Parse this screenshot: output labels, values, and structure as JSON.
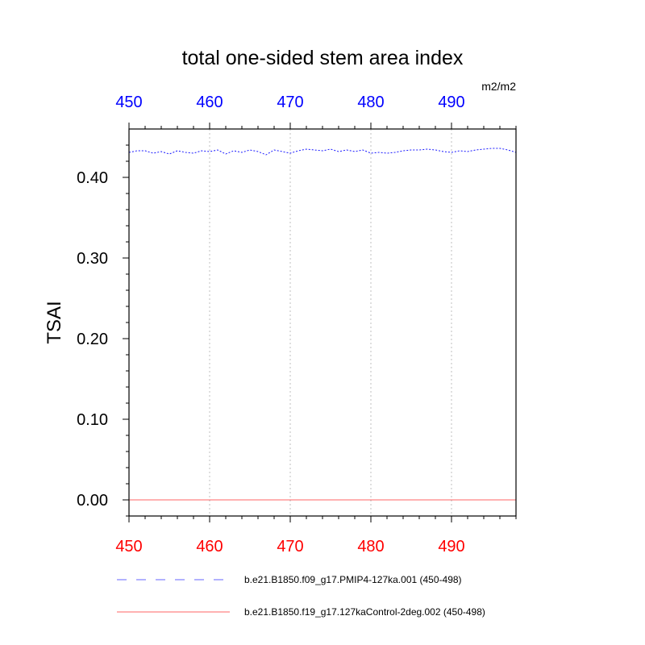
{
  "chart_data": {
    "type": "line",
    "title": "total one-sided stem area index",
    "units": "m2/m2",
    "ylabel": "TSAI",
    "xlabel": "",
    "xlim": [
      450,
      498
    ],
    "ylim": [
      -0.02,
      0.46
    ],
    "x_ticks": [
      450,
      460,
      470,
      480,
      490
    ],
    "y_ticks": [
      0.0,
      0.1,
      0.2,
      0.3,
      0.4
    ],
    "y_tick_labels": [
      "0.00",
      "0.10",
      "0.20",
      "0.30",
      "0.40"
    ],
    "bottom_axis_color": "#ff0000",
    "top_axis_color": "#0000ff",
    "grid": "vertical dotted at major x ticks",
    "legend_placement": "below",
    "series": [
      {
        "name": "b.e21.B1850.f09_g17.PMIP4-127ka.001 (450-498)",
        "color": "#0000ff",
        "dash": "dashed",
        "x": [
          450,
          451,
          452,
          453,
          454,
          455,
          456,
          457,
          458,
          459,
          460,
          461,
          462,
          463,
          464,
          465,
          466,
          467,
          468,
          469,
          470,
          471,
          472,
          473,
          474,
          475,
          476,
          477,
          478,
          479,
          480,
          481,
          482,
          483,
          484,
          485,
          486,
          487,
          488,
          489,
          490,
          491,
          492,
          493,
          494,
          495,
          496,
          497,
          498
        ],
        "values": [
          0.431,
          0.433,
          0.433,
          0.43,
          0.432,
          0.429,
          0.433,
          0.431,
          0.43,
          0.433,
          0.432,
          0.434,
          0.429,
          0.433,
          0.431,
          0.434,
          0.432,
          0.428,
          0.434,
          0.432,
          0.43,
          0.433,
          0.435,
          0.434,
          0.433,
          0.435,
          0.432,
          0.434,
          0.432,
          0.434,
          0.43,
          0.431,
          0.43,
          0.431,
          0.433,
          0.434,
          0.434,
          0.435,
          0.434,
          0.432,
          0.431,
          0.433,
          0.432,
          0.434,
          0.435,
          0.436,
          0.436,
          0.434,
          0.431
        ]
      },
      {
        "name": "b.e21.B1850.f19_g17.127kaControl-2deg.002 (450-498)",
        "color": "#ff0000",
        "dash": "solid",
        "x": [
          450,
          498
        ],
        "values": [
          0.0,
          0.0
        ]
      }
    ]
  }
}
